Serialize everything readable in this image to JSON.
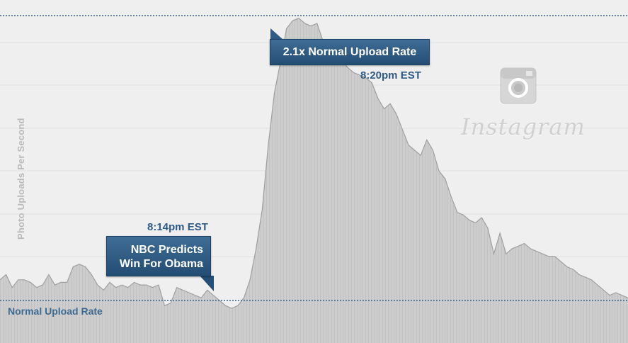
{
  "chart_data": {
    "type": "area",
    "title": "",
    "xlabel": "",
    "ylabel": "Photo Uploads Per Second",
    "normal_rate": 1.0,
    "peak_rate": 2.1,
    "ylim": [
      0,
      2.2
    ],
    "grid": true,
    "values": [
      1.08,
      1.1,
      1.05,
      1.08,
      1.08,
      1.07,
      1.05,
      1.06,
      1.1,
      1.06,
      1.07,
      1.07,
      1.13,
      1.14,
      1.13,
      1.1,
      1.06,
      1.04,
      1.07,
      1.05,
      1.06,
      1.05,
      1.07,
      1.06,
      1.06,
      1.05,
      1.06,
      0.98,
      0.99,
      1.05,
      1.04,
      1.03,
      1.02,
      1.01,
      1.04,
      1.02,
      1.0,
      0.98,
      0.97,
      0.98,
      1.01,
      1.08,
      1.2,
      1.35,
      1.6,
      1.8,
      1.92,
      2.05,
      2.08,
      2.09,
      2.07,
      2.06,
      2.07,
      2.0,
      1.97,
      1.95,
      1.93,
      1.9,
      1.88,
      1.87,
      1.86,
      1.84,
      1.78,
      1.74,
      1.76,
      1.72,
      1.66,
      1.6,
      1.58,
      1.56,
      1.62,
      1.58,
      1.5,
      1.47,
      1.4,
      1.34,
      1.33,
      1.31,
      1.3,
      1.32,
      1.28,
      1.18,
      1.26,
      1.18,
      1.2,
      1.21,
      1.22,
      1.2,
      1.19,
      1.18,
      1.17,
      1.17,
      1.15,
      1.13,
      1.12,
      1.1,
      1.09,
      1.08,
      1.06,
      1.04,
      1.02,
      1.03,
      1.02,
      1.01
    ],
    "annotations": [
      {
        "label": "2.1x Normal Upload Rate",
        "time": "8:20pm EST"
      },
      {
        "label_lines": [
          "NBC Predicts",
          "Win For Obama"
        ],
        "time": "8:14pm EST"
      }
    ],
    "reference_lines": [
      {
        "name": "Normal Upload Rate",
        "value": 1.0
      },
      {
        "name": "peak",
        "value": 2.1
      }
    ],
    "colors": {
      "area_fill": "#c9c9c9",
      "area_line": "#9f9f9f",
      "reference_line": "#3a6186",
      "callout": "#2e5a83"
    }
  },
  "labels": {
    "peak_callout": "2.1x Normal Upload Rate",
    "peak_time": "8:20pm EST",
    "nbc_line1": "NBC Predicts",
    "nbc_line2": "Win For Obama",
    "nbc_time": "8:14pm EST",
    "baseline": "Normal Upload Rate",
    "ylabel": "Photo Uploads Per Second"
  },
  "brand": {
    "wordmark": "Instagram",
    "logo_icon": "camera-icon"
  }
}
